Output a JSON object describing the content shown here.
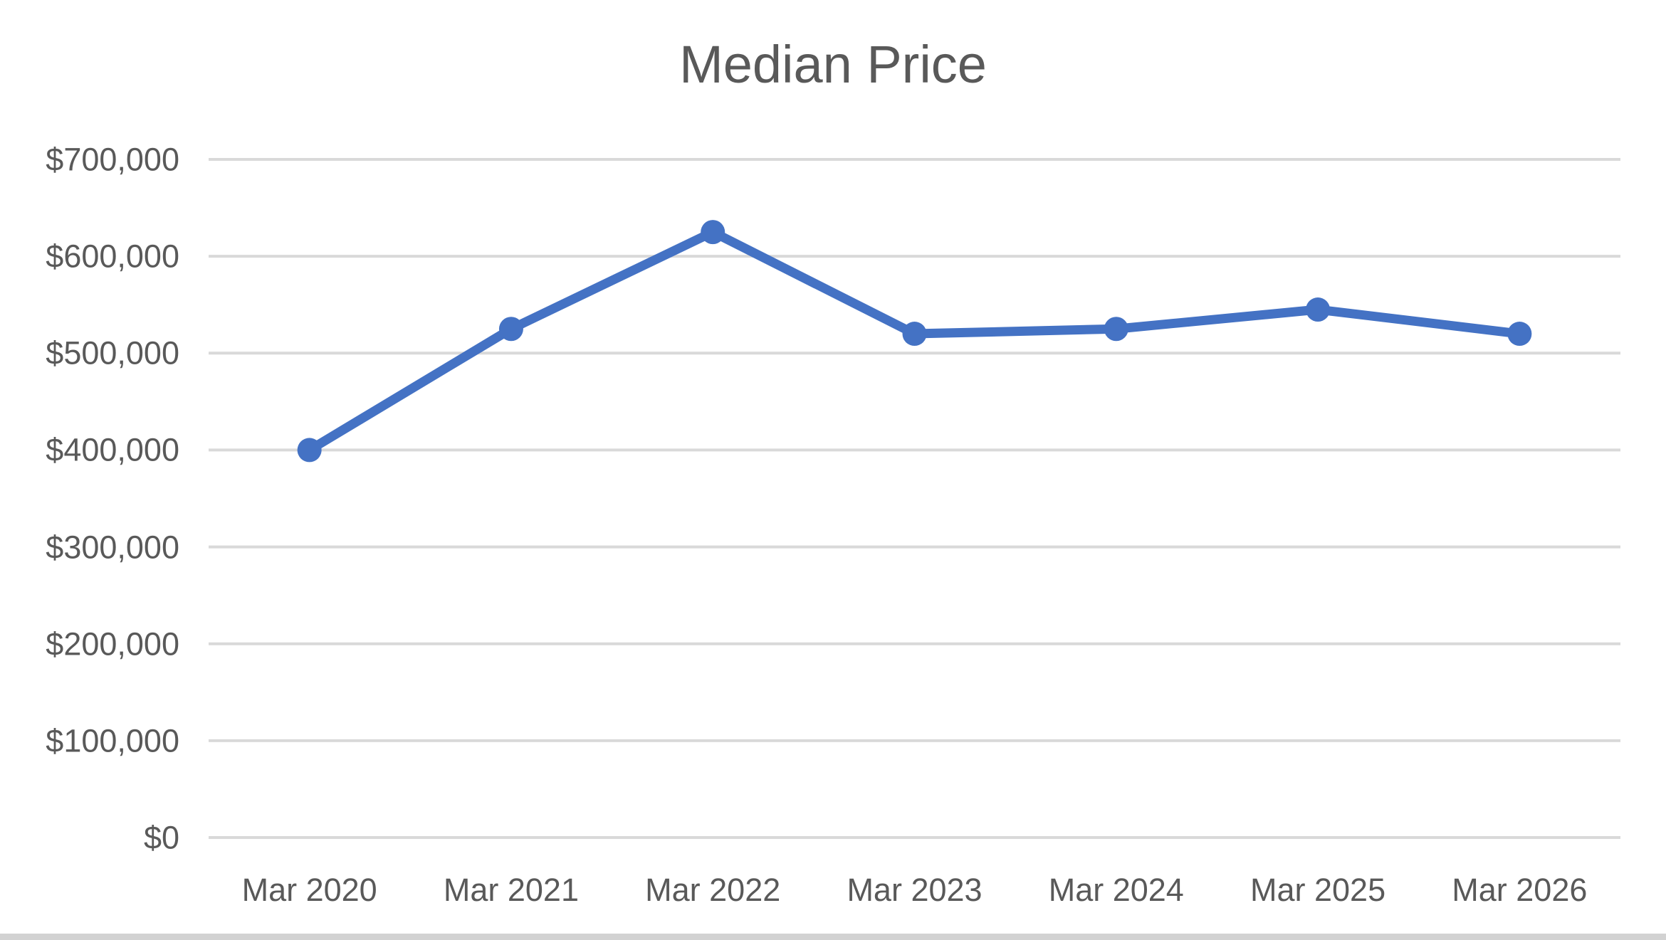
{
  "chart_data": {
    "type": "line",
    "title": "Median Price",
    "categories": [
      "Mar 2020",
      "Mar 2021",
      "Mar 2022",
      "Mar 2023",
      "Mar 2024",
      "Mar 2025",
      "Mar 2026"
    ],
    "series": [
      {
        "name": "Median Price",
        "values": [
          400000,
          525000,
          625000,
          520000,
          525000,
          545000,
          520000
        ]
      }
    ],
    "xlabel": "",
    "ylabel": "",
    "ylim": [
      0,
      700000
    ],
    "y_tick_step": 100000,
    "y_tick_labels": [
      "$700,000",
      "$600,000",
      "$500,000",
      "$400,000",
      "$300,000",
      "$200,000",
      "$100,000",
      "$0"
    ],
    "grid": true,
    "legend": "none",
    "marker": "circle"
  },
  "colors": {
    "line": "#4472C4",
    "marker": "#4472C4",
    "gridline": "#D9D9D9",
    "title_text": "#595959",
    "tick_text": "#595959",
    "background": "#FFFFFF",
    "bottom_strip": "#D2D2D2"
  }
}
